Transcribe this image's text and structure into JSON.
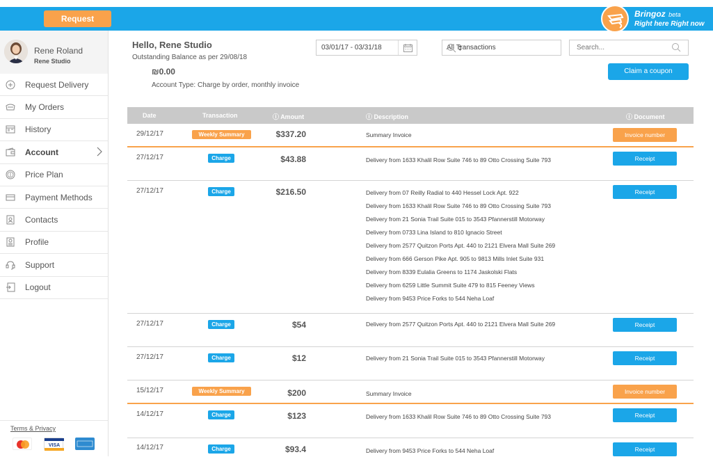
{
  "header": {
    "request_delivery": "Request Delivery",
    "brand_name": "Bringoz",
    "brand_badge": "beta",
    "tagline": "Right here Right now"
  },
  "user": {
    "name": "Rene Roland",
    "company": "Rene Studio"
  },
  "sidebar": {
    "items": [
      {
        "label": "Request Delivery",
        "icon": "plus-circle-icon"
      },
      {
        "label": "My Orders",
        "icon": "orders-icon"
      },
      {
        "label": "History",
        "icon": "history-icon"
      },
      {
        "label": "Account",
        "icon": "wallet-icon"
      },
      {
        "label": "Price Plan",
        "icon": "dollar-icon"
      },
      {
        "label": "Payment Methods",
        "icon": "credit-card-icon"
      },
      {
        "label": "Contacts",
        "icon": "contacts-icon"
      },
      {
        "label": "Profile",
        "icon": "profile-icon"
      },
      {
        "label": "Support",
        "icon": "support-icon"
      },
      {
        "label": "Logout",
        "icon": "logout-icon"
      }
    ],
    "active": "Account",
    "terms": "Terms & Privacy",
    "cards": [
      "MasterCard",
      "VISA",
      "AMERICAN EXPRESS"
    ]
  },
  "account": {
    "greeting": "Hello, Rene Studio",
    "outstanding_label": "Outstanding Balance as per 29/08/18",
    "balance": "₪0.00",
    "account_type": "Account Type: Charge by order, monthly invoice"
  },
  "filters": {
    "date_range": "03/01/17 - 03/31/18",
    "transaction_type": "All Transactions",
    "search_placeholder": "Search...",
    "coupon_button": "Claim a coupon"
  },
  "table": {
    "columns": [
      "Date",
      "Transaction",
      "Amount",
      "Description",
      "Document"
    ],
    "rows": [
      {
        "date": "29/12/17",
        "type": "Weekly Summary",
        "amount": "$337.20",
        "desc": [
          "Summary Invoice"
        ],
        "doc": "Invoice number"
      },
      {
        "date": "27/12/17",
        "type": "Charge",
        "amount": "$43.88",
        "desc": [
          "Delivery from  1633 Khalil Row Suite 746 to 89 Otto Crossing Suite 793"
        ],
        "doc": "Receipt"
      },
      {
        "date": "27/12/17",
        "type": "Charge",
        "amount": "$216.50",
        "desc": [
          "Delivery from  07 Reilly Radial  to 440 Hessel Lock Apt. 922",
          "Delivery from  1633 Khalil Row Suite 746 to 89 Otto Crossing Suite 793",
          "Delivery from  21 Sonia Trail Suite 015 to 3543 Pfannerstill Motorway",
          "Delivery from  0733 Lina Island to 810 Ignacio Street",
          "Delivery from  2577 Quitzon Ports Apt. 440 to 2121 Elvera Mall Suite 269",
          "Delivery from  666 Gerson Pike Apt. 905 to 9813 Mills Inlet Suite 931",
          "Delivery from  8339 Eulalia Greens  to 1174 Jaskolski Flats",
          "Delivery from  6259 Little Summit Suite 479 to 815 Feeney Views",
          "Delivery from  9453 Price Forks to 544 Neha Loaf"
        ],
        "doc": "Receipt"
      },
      {
        "date": "27/12/17",
        "type": "Charge",
        "amount": "$54",
        "desc": [
          "Delivery from  2577 Quitzon Ports Apt. 440 to 2121 Elvera Mall Suite 269"
        ],
        "doc": "Receipt"
      },
      {
        "date": "27/12/17",
        "type": "Charge",
        "amount": "$12",
        "desc": [
          "Delivery from  21 Sonia Trail Suite 015 to 3543 Pfannerstill Motorway"
        ],
        "doc": "Receipt"
      },
      {
        "date": "15/12/17",
        "type": "Weekly Summary",
        "amount": "$200",
        "desc": [
          "Summary Invoice"
        ],
        "doc": "Invoice number"
      },
      {
        "date": "14/12/17",
        "type": "Charge",
        "amount": "$123",
        "desc": [
          "Delivery from  1633 Khalil Row Suite 746 to 89 Otto Crossing Suite 793"
        ],
        "doc": "Receipt"
      },
      {
        "date": "14/12/17",
        "type": "Charge",
        "amount": "$93.4",
        "desc": [
          "Delivery from  9453 Price Forks to 544 Neha Loaf"
        ],
        "doc": "Receipt"
      }
    ]
  },
  "colors": {
    "primary": "#1ba6e8",
    "accent": "#f9a24b"
  }
}
